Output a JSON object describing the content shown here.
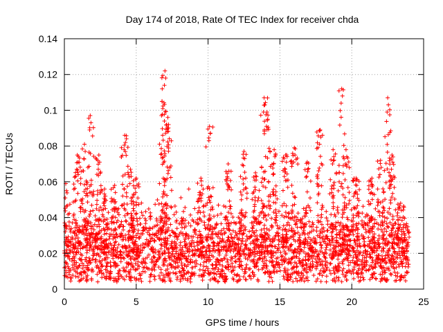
{
  "chart_data": {
    "type": "scatter",
    "title": "Day 174 of 2018, Rate Of TEC Index for receiver chda",
    "xlabel": "GPS time / hours",
    "ylabel": "ROTI / TECUs",
    "xlim": [
      0,
      25
    ],
    "ylim": [
      0,
      0.14
    ],
    "x_ticks": [
      0,
      5,
      10,
      15,
      20,
      25
    ],
    "x_tick_labels": [
      "0",
      "5",
      "10",
      "15",
      "20",
      "25"
    ],
    "y_ticks": [
      0,
      0.02,
      0.04,
      0.06,
      0.08,
      0.1,
      0.12,
      0.14
    ],
    "y_tick_labels": [
      "0",
      "0.02",
      "0.04",
      "0.06",
      "0.08",
      "0.1",
      "0.12",
      "0.14"
    ],
    "grid": true,
    "marker": "+",
    "color": "#ff0000",
    "series": [
      {
        "name": "ROTI",
        "x_range": [
          0,
          24
        ],
        "typical_range": [
          0.008,
          0.035
        ],
        "median": 0.02,
        "peaks": [
          {
            "x": 0.1,
            "y": 0.059
          },
          {
            "x": 0.9,
            "y": 0.075
          },
          {
            "x": 1.4,
            "y": 0.081
          },
          {
            "x": 1.8,
            "y": 0.097
          },
          {
            "x": 2.4,
            "y": 0.075
          },
          {
            "x": 2.8,
            "y": 0.056
          },
          {
            "x": 3.5,
            "y": 0.058
          },
          {
            "x": 4.2,
            "y": 0.086
          },
          {
            "x": 4.6,
            "y": 0.067
          },
          {
            "x": 5.0,
            "y": 0.062
          },
          {
            "x": 6.8,
            "y": 0.105
          },
          {
            "x": 7.0,
            "y": 0.122
          },
          {
            "x": 7.2,
            "y": 0.096
          },
          {
            "x": 9.5,
            "y": 0.062
          },
          {
            "x": 10.1,
            "y": 0.091
          },
          {
            "x": 11.4,
            "y": 0.07
          },
          {
            "x": 12.5,
            "y": 0.077
          },
          {
            "x": 13.3,
            "y": 0.065
          },
          {
            "x": 13.9,
            "y": 0.107
          },
          {
            "x": 14.1,
            "y": 0.099
          },
          {
            "x": 14.6,
            "y": 0.078
          },
          {
            "x": 15.4,
            "y": 0.075
          },
          {
            "x": 16.0,
            "y": 0.079
          },
          {
            "x": 16.9,
            "y": 0.071
          },
          {
            "x": 17.8,
            "y": 0.089
          },
          {
            "x": 18.7,
            "y": 0.078
          },
          {
            "x": 19.3,
            "y": 0.112
          },
          {
            "x": 19.6,
            "y": 0.078
          },
          {
            "x": 20.3,
            "y": 0.062
          },
          {
            "x": 21.4,
            "y": 0.062
          },
          {
            "x": 22.0,
            "y": 0.072
          },
          {
            "x": 22.5,
            "y": 0.107
          },
          {
            "x": 22.8,
            "y": 0.075
          },
          {
            "x": 23.4,
            "y": 0.048
          }
        ]
      }
    ]
  }
}
